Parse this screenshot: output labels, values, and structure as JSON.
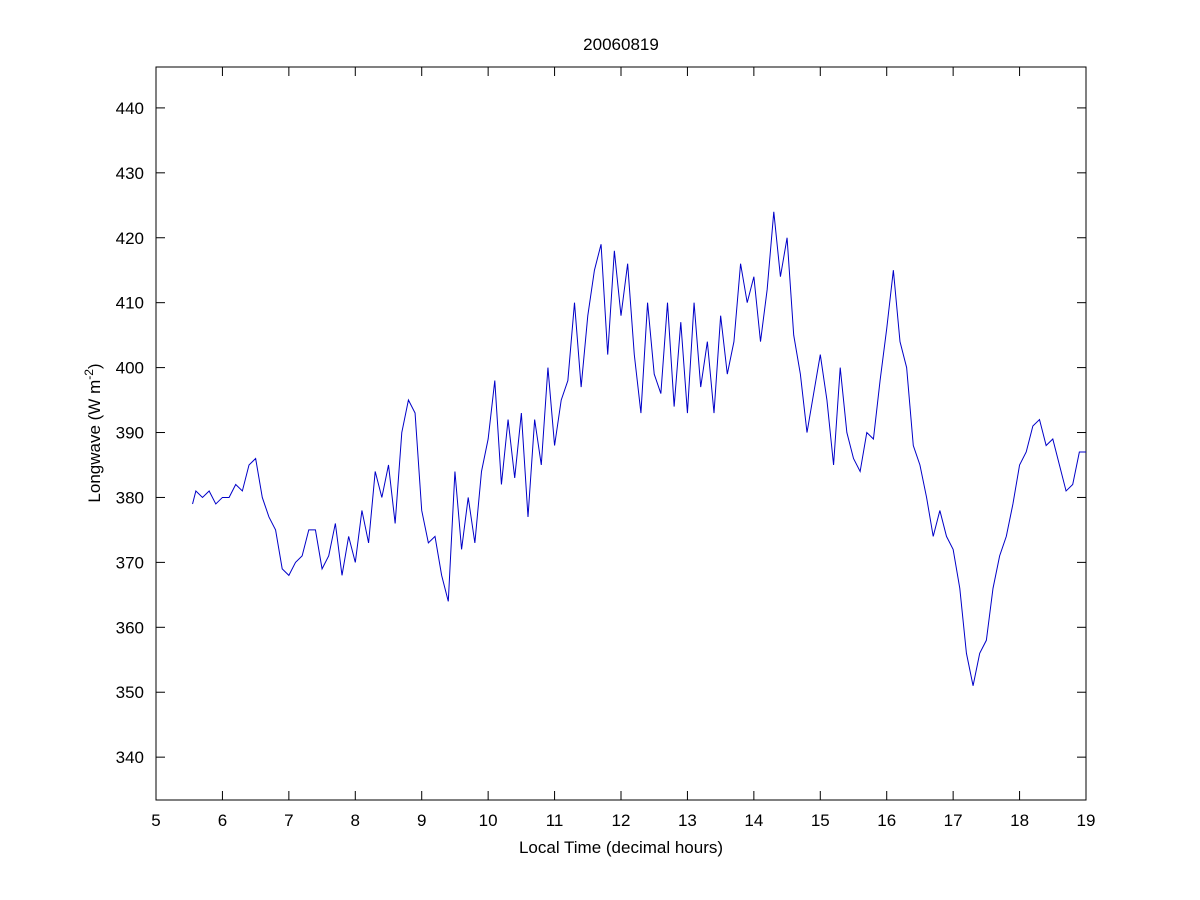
{
  "chart_data": {
    "type": "line",
    "title": "20060819",
    "xlabel": "Local Time (decimal hours)",
    "ylabel": {
      "text": "Longwave (W m",
      "superscript": "-2",
      "suffix": ")"
    },
    "xlim": [
      5,
      19
    ],
    "xticks": [
      5,
      6,
      7,
      8,
      9,
      10,
      11,
      12,
      13,
      14,
      15,
      16,
      17,
      18,
      19
    ],
    "ylim": [
      333.4,
      446.3
    ],
    "yticks": [
      340,
      350,
      360,
      370,
      380,
      390,
      400,
      410,
      420,
      430,
      440
    ],
    "grid": false,
    "series": [
      {
        "name": "Longwave",
        "color": "#0000c8",
        "x": [
          5.55,
          5.6,
          5.7,
          5.8,
          5.9,
          6.0,
          6.1,
          6.2,
          6.3,
          6.4,
          6.5,
          6.6,
          6.7,
          6.8,
          6.9,
          7.0,
          7.1,
          7.2,
          7.3,
          7.4,
          7.5,
          7.6,
          7.7,
          7.8,
          7.9,
          8.0,
          8.1,
          8.2,
          8.3,
          8.4,
          8.5,
          8.6,
          8.7,
          8.8,
          8.9,
          9.0,
          9.1,
          9.2,
          9.3,
          9.4,
          9.5,
          9.6,
          9.7,
          9.8,
          9.9,
          10.0,
          10.1,
          10.2,
          10.3,
          10.4,
          10.5,
          10.6,
          10.7,
          10.8,
          10.9,
          11.0,
          11.1,
          11.2,
          11.3,
          11.4,
          11.5,
          11.6,
          11.7,
          11.8,
          11.9,
          12.0,
          12.1,
          12.2,
          12.3,
          12.4,
          12.5,
          12.6,
          12.7,
          12.8,
          12.9,
          13.0,
          13.1,
          13.2,
          13.3,
          13.4,
          13.5,
          13.6,
          13.7,
          13.8,
          13.9,
          14.0,
          14.1,
          14.2,
          14.3,
          14.4,
          14.5,
          14.6,
          14.7,
          14.8,
          14.9,
          15.0,
          15.1,
          15.2,
          15.3,
          15.4,
          15.5,
          15.6,
          15.7,
          15.8,
          15.9,
          16.0,
          16.1,
          16.2,
          16.3,
          16.4,
          16.5,
          16.6,
          16.7,
          16.8,
          16.9,
          17.0,
          17.1,
          17.2,
          17.3,
          17.4,
          17.5,
          17.6,
          17.7,
          17.8,
          17.9,
          18.0,
          18.1,
          18.2,
          18.3,
          18.4,
          18.5,
          18.6,
          18.7,
          18.8,
          18.9,
          19.0
        ],
        "values": [
          379,
          381,
          380,
          381,
          379,
          380,
          380,
          382,
          381,
          385,
          386,
          380,
          377,
          375,
          369,
          368,
          370,
          371,
          375,
          375,
          369,
          371,
          376,
          368,
          374,
          370,
          378,
          373,
          384,
          380,
          385,
          376,
          390,
          395,
          393,
          378,
          373,
          374,
          368,
          364,
          384,
          372,
          380,
          373,
          384,
          389,
          398,
          382,
          392,
          383,
          393,
          377,
          392,
          385,
          400,
          388,
          395,
          398,
          410,
          397,
          408,
          415,
          419,
          402,
          418,
          408,
          416,
          402,
          393,
          410,
          399,
          396,
          410,
          394,
          407,
          393,
          410,
          397,
          404,
          393,
          408,
          399,
          404,
          416,
          410,
          414,
          404,
          412,
          424,
          414,
          420,
          405,
          399,
          390,
          396,
          402,
          395,
          385,
          400,
          390,
          386,
          384,
          390,
          389,
          398,
          406,
          415,
          404,
          400,
          388,
          385,
          380,
          374,
          378,
          374,
          372,
          366,
          356,
          351,
          356,
          358,
          366,
          371,
          374,
          379,
          385,
          387,
          391,
          392,
          388,
          389,
          385,
          381,
          382,
          387,
          387
        ]
      }
    ]
  }
}
